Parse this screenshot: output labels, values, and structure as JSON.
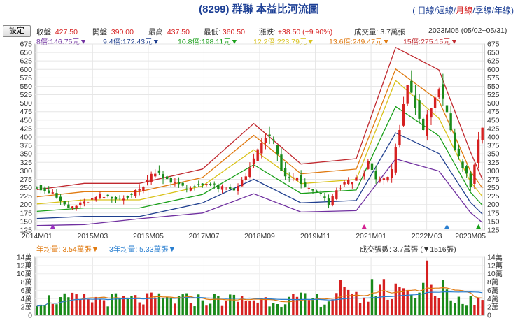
{
  "header": {
    "title": "(8299) 群聯 本益比河流圖",
    "periods": [
      "日線",
      "週線",
      "月線",
      "季線",
      "年線"
    ],
    "selected_period": "月線",
    "settings_label": "設定",
    "date_range": "2023M05 (05/02~05/31)"
  },
  "stats": [
    {
      "label": "收盤:",
      "value": "427.50",
      "color": "#d62020"
    },
    {
      "label": "開盤:",
      "value": "390.00",
      "color": "#d62020"
    },
    {
      "label": "最高:",
      "value": "437.50",
      "color": "#d62020"
    },
    {
      "label": "最低:",
      "value": "360.50",
      "color": "#d62020"
    },
    {
      "label": "漲跌:",
      "value": "+38.50 (+9.90%)",
      "color": "#d62020"
    },
    {
      "label": "成交量:",
      "value": "3.7萬張",
      "color": "#333333"
    }
  ],
  "bands_legend": [
    {
      "text": "8倍:146.75元▼",
      "color": "#7030a0"
    },
    {
      "text": "9.4倍:172.43元▼",
      "color": "#1f3f8f"
    },
    {
      "text": "10.8倍:198.11元▼",
      "color": "#1aa01a"
    },
    {
      "text": "12.2倍:223.79元▼",
      "color": "#d9c21a"
    },
    {
      "text": "13.6倍:249.47元▼",
      "color": "#e07a10"
    },
    {
      "text": "15倍:275.15元▼",
      "color": "#c0282e"
    }
  ],
  "volume_legend": [
    {
      "text": "年均量: 3.54萬張▼",
      "color": "#e07a10"
    },
    {
      "text": "3年均量: 5.33萬張▼",
      "color": "#2a7fd0"
    },
    {
      "text": "成交張數: 3.7萬張 (▼1516張)",
      "color": "#333333"
    }
  ],
  "chart_data": {
    "type": "candlestick-with-pe-bands",
    "x_ticks": [
      "2014M01",
      "2015M03",
      "2016M05",
      "2017M07",
      "2018M09",
      "2019M11",
      "2021M01",
      "2022M03",
      "2023M05"
    ],
    "y_ticks": [
      125,
      150,
      175,
      200,
      225,
      250,
      275,
      300,
      325,
      350,
      375,
      400,
      425,
      450,
      475,
      500,
      525,
      550,
      575,
      600,
      625,
      650,
      675
    ],
    "ylim": [
      125,
      675
    ],
    "months": 113,
    "bands": [
      {
        "name": "8倍",
        "color": "#7030a0",
        "points": [
          [
            0,
            138
          ],
          [
            12,
            141
          ],
          [
            26,
            158
          ],
          [
            42,
            175
          ],
          [
            55,
            232
          ],
          [
            67,
            178
          ],
          [
            81,
            182
          ],
          [
            91,
            335
          ],
          [
            102,
            299
          ],
          [
            110,
            176
          ],
          [
            113,
            147
          ]
        ]
      },
      {
        "name": "9.4倍",
        "color": "#1f3f8f",
        "points": [
          [
            0,
            159
          ],
          [
            12,
            165
          ],
          [
            26,
            165
          ],
          [
            42,
            205
          ],
          [
            55,
            275
          ],
          [
            67,
            205
          ],
          [
            81,
            212
          ],
          [
            91,
            412
          ],
          [
            102,
            351
          ],
          [
            110,
            206
          ],
          [
            113,
            172
          ]
        ]
      },
      {
        "name": "10.8倍",
        "color": "#1aa01a",
        "points": [
          [
            0,
            180
          ],
          [
            12,
            190
          ],
          [
            26,
            190
          ],
          [
            42,
            230
          ],
          [
            55,
            318
          ],
          [
            67,
            233
          ],
          [
            81,
            243
          ],
          [
            91,
            490
          ],
          [
            102,
            403
          ],
          [
            110,
            236
          ],
          [
            113,
            198
          ]
        ]
      },
      {
        "name": "12.2倍",
        "color": "#d9c21a",
        "points": [
          [
            0,
            202
          ],
          [
            12,
            214
          ],
          [
            26,
            214
          ],
          [
            42,
            255
          ],
          [
            55,
            362
          ],
          [
            67,
            262
          ],
          [
            81,
            274
          ],
          [
            91,
            567
          ],
          [
            102,
            455
          ],
          [
            110,
            267
          ],
          [
            113,
            224
          ]
        ]
      },
      {
        "name": "13.6倍",
        "color": "#e07a10",
        "points": [
          [
            0,
            223
          ],
          [
            12,
            238
          ],
          [
            26,
            238
          ],
          [
            42,
            280
          ],
          [
            55,
            405
          ],
          [
            67,
            291
          ],
          [
            81,
            305
          ],
          [
            91,
            601
          ],
          [
            102,
            507
          ],
          [
            110,
            298
          ],
          [
            113,
            249
          ]
        ]
      },
      {
        "name": "15倍",
        "color": "#c0282e",
        "points": [
          [
            0,
            244
          ],
          [
            12,
            263
          ],
          [
            26,
            263
          ],
          [
            42,
            305
          ],
          [
            55,
            440
          ],
          [
            67,
            320
          ],
          [
            81,
            336
          ],
          [
            91,
            665
          ],
          [
            102,
            598
          ],
          [
            110,
            355
          ],
          [
            113,
            275
          ]
        ]
      }
    ],
    "price_path": [
      [
        0,
        255
      ],
      [
        4,
        230
      ],
      [
        8,
        190
      ],
      [
        12,
        205
      ],
      [
        16,
        225
      ],
      [
        20,
        215
      ],
      [
        24,
        230
      ],
      [
        26,
        245
      ],
      [
        30,
        300
      ],
      [
        34,
        270
      ],
      [
        38,
        245
      ],
      [
        42,
        265
      ],
      [
        46,
        250
      ],
      [
        50,
        240
      ],
      [
        53,
        290
      ],
      [
        56,
        355
      ],
      [
        58,
        405
      ],
      [
        60,
        380
      ],
      [
        62,
        300
      ],
      [
        64,
        275
      ],
      [
        66,
        280
      ],
      [
        68,
        250
      ],
      [
        72,
        230
      ],
      [
        74,
        200
      ],
      [
        76,
        240
      ],
      [
        78,
        265
      ],
      [
        80,
        270
      ],
      [
        82,
        280
      ],
      [
        84,
        320
      ],
      [
        86,
        275
      ],
      [
        88,
        270
      ],
      [
        90,
        300
      ],
      [
        92,
        430
      ],
      [
        94,
        555
      ],
      [
        96,
        500
      ],
      [
        98,
        410
      ],
      [
        100,
        500
      ],
      [
        102,
        545
      ],
      [
        104,
        460
      ],
      [
        106,
        360
      ],
      [
        108,
        310
      ],
      [
        110,
        260
      ],
      [
        112,
        385
      ],
      [
        113,
        427.5
      ]
    ],
    "markers": [
      {
        "x": 4,
        "color": "#9b30c0"
      },
      {
        "x": 83,
        "color": "#d42090"
      },
      {
        "x": 104,
        "color": "#2a7fd0"
      },
      {
        "x": 112,
        "color": "#1aa01a"
      }
    ],
    "volume": {
      "y_ticks": [
        "0",
        "2萬",
        "4萬",
        "6萬",
        "8萬",
        "10萬",
        "12萬",
        "14萬"
      ],
      "ylim": [
        0,
        14
      ],
      "avg_1y_color": "#e07a10",
      "avg_3y_color": "#2a7fd0"
    }
  }
}
